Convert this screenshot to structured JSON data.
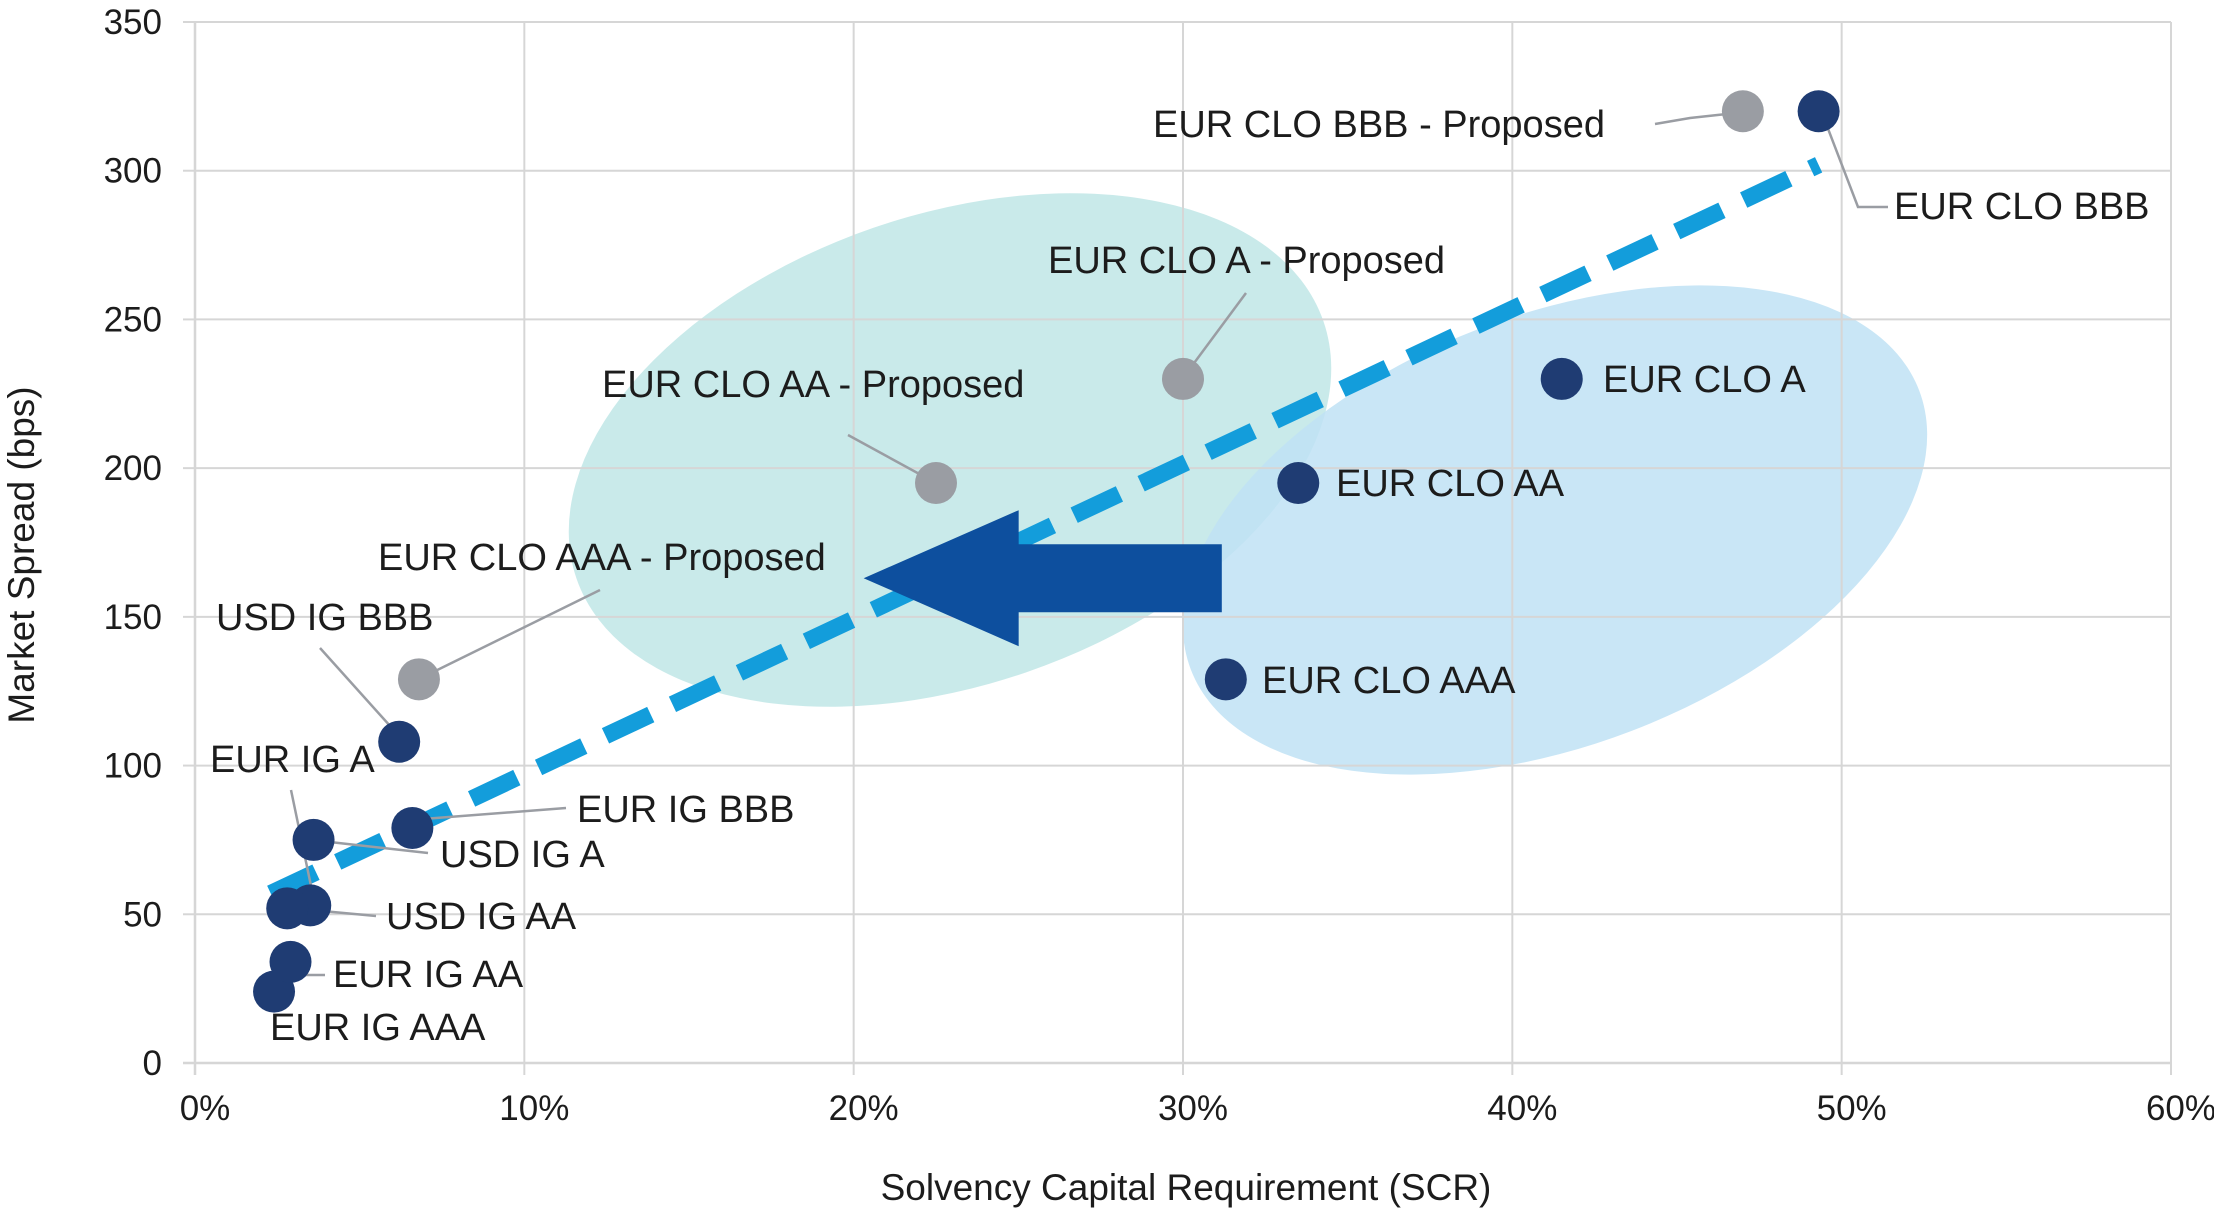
{
  "chart_data": {
    "type": "scatter",
    "title": "",
    "xlabel": "Solvency Capital Requirement (SCR)",
    "ylabel": "Market Spread (bps)",
    "xlim": [
      0,
      60
    ],
    "ylim": [
      0,
      350
    ],
    "x_unit": "%",
    "xticks": [
      0,
      10,
      20,
      30,
      40,
      50,
      60
    ],
    "yticks": [
      0,
      50,
      100,
      150,
      200,
      250,
      300,
      350
    ],
    "xtick_labels": [
      "0%",
      "10%",
      "20%",
      "30%",
      "40%",
      "50%",
      "60%"
    ],
    "ytick_labels": [
      "0",
      "50",
      "100",
      "150",
      "200",
      "250",
      "300",
      "350"
    ],
    "grid": true,
    "colors": {
      "current": "#1f3c73",
      "proposed": "#9a9da3",
      "trendline": "#139ddb",
      "arrow": "#0d4f9e",
      "proposed_region": "#bfe6e6",
      "current_region": "#bfe2f4",
      "grid": "#d6d6d6",
      "leader": "#9a9da3",
      "text": "#1c1c1c"
    },
    "points": [
      {
        "label": "EUR IG AAA",
        "x": 2.4,
        "y": 24,
        "group": "current"
      },
      {
        "label": "EUR IG AA",
        "x": 2.9,
        "y": 34,
        "group": "current"
      },
      {
        "label": "EUR IG A",
        "x": 3.5,
        "y": 53,
        "group": "current"
      },
      {
        "label": "USD IG AA",
        "x": 2.8,
        "y": 52,
        "group": "current"
      },
      {
        "label": "USD IG A",
        "x": 3.6,
        "y": 75,
        "group": "current"
      },
      {
        "label": "EUR IG BBB",
        "x": 6.6,
        "y": 79,
        "group": "current"
      },
      {
        "label": "USD IG BBB",
        "x": 6.2,
        "y": 108,
        "group": "current"
      },
      {
        "label": "EUR CLO AAA",
        "x": 31.3,
        "y": 129,
        "group": "current"
      },
      {
        "label": "EUR CLO AA",
        "x": 33.5,
        "y": 195,
        "group": "current"
      },
      {
        "label": "EUR CLO A",
        "x": 41.5,
        "y": 230,
        "group": "current"
      },
      {
        "label": "EUR CLO BBB",
        "x": 49.3,
        "y": 320,
        "group": "current"
      },
      {
        "label": "EUR CLO AAA - Proposed",
        "x": 6.8,
        "y": 129,
        "group": "proposed"
      },
      {
        "label": "EUR CLO AA - Proposed",
        "x": 22.5,
        "y": 195,
        "group": "proposed"
      },
      {
        "label": "EUR CLO A - Proposed",
        "x": 30.0,
        "y": 230,
        "group": "proposed"
      },
      {
        "label": "EUR CLO BBB - Proposed",
        "x": 47.0,
        "y": 320,
        "group": "proposed"
      }
    ],
    "trendline": {
      "x": [
        2.3,
        49.3
      ],
      "y": [
        57,
        302
      ],
      "style": "dashed"
    },
    "arrow": {
      "from": {
        "x": 33,
        "y": 163
      },
      "to": {
        "x": 20,
        "y": 163
      },
      "direction": "left"
    }
  }
}
